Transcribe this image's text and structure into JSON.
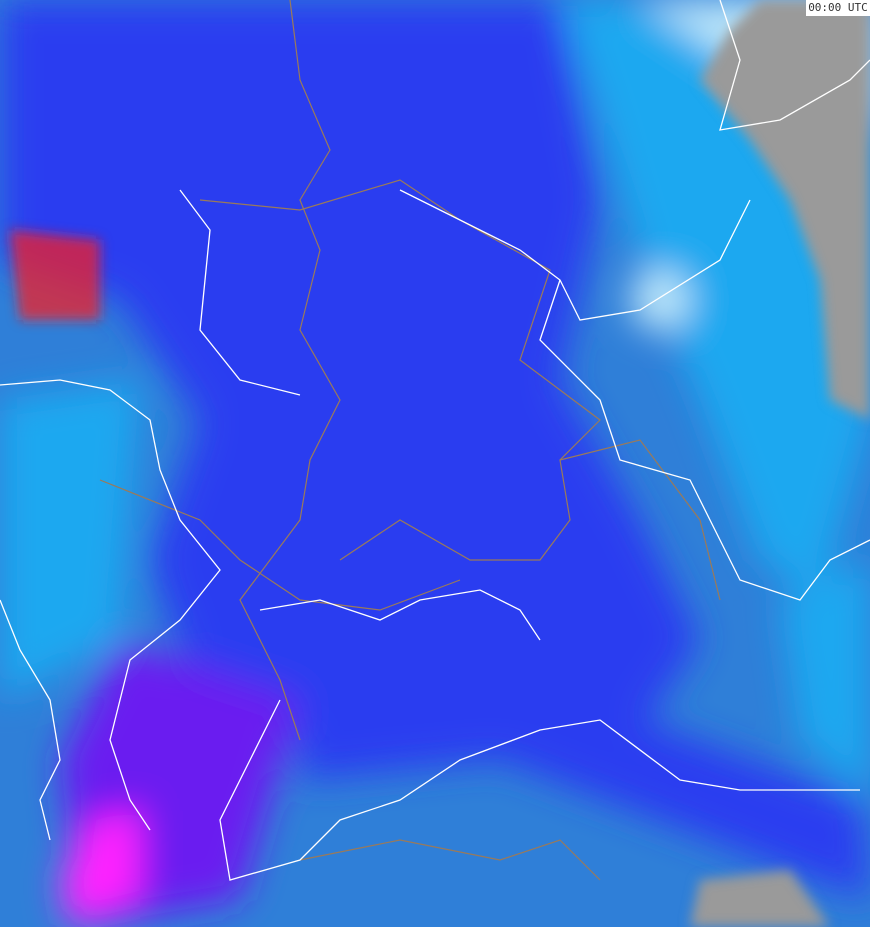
{
  "map": {
    "type": "weather-radar-composite",
    "timestamp_label": "00:00 UTC",
    "colors": {
      "base": "#2f7fd8",
      "light": "#1ea8f0",
      "pale": "#bfe8fa",
      "strong": "#2a3cf0",
      "violet": "#6a1cf0",
      "magenta": "#ff20ff",
      "red": "#ff2020",
      "no_data": "#9a9a9a",
      "borders": "#ffffff",
      "regions": "#9a7a5a"
    }
  }
}
